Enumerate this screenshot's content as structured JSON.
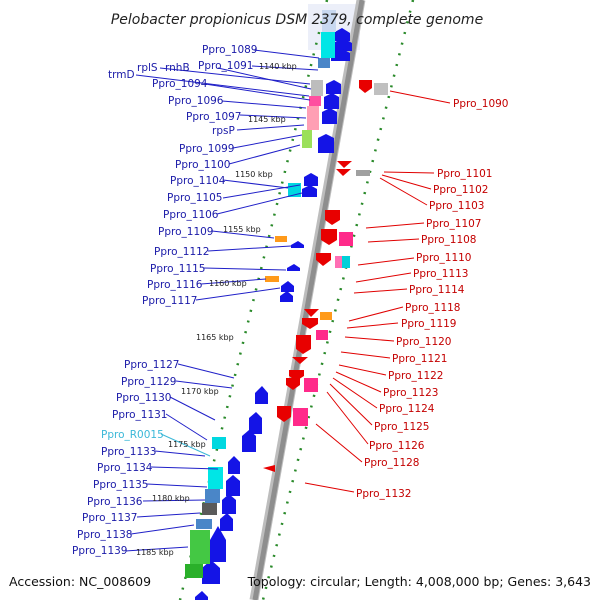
{
  "title": "Pelobacter propionicus DSM 2379, complete genome",
  "footer": {
    "accession": "Accession: NC_008609",
    "topology": "Topology: circular; Length: 4,008,000 bp; Genes: 3,643"
  },
  "ticks": [
    "1140 kbp",
    "1145 kbp",
    "1150 kbp",
    "1155 kbp",
    "1160 kbp",
    "1165 kbp",
    "1170 kbp",
    "1175 kbp",
    "1180 kbp",
    "1185 kbp"
  ],
  "left_labels": [
    "Ppro_1089",
    "Ppro_1091",
    "rplS",
    "rnhB",
    "trmD",
    "Ppro_1094",
    "Ppro_1096",
    "Ppro_1097",
    "rpsP",
    "Ppro_1099",
    "Ppro_1100",
    "Ppro_1104",
    "Ppro_1105",
    "Ppro_1106",
    "Ppro_1109",
    "Ppro_1112",
    "Ppro_1115",
    "Ppro_1116",
    "Ppro_1117",
    "Ppro_1127",
    "Ppro_1129",
    "Ppro_1130",
    "Ppro_1131",
    "Ppro_R0015",
    "Ppro_1133",
    "Ppro_1134",
    "Ppro_1135",
    "Ppro_1136",
    "Ppro_1137",
    "Ppro_1138",
    "Ppro_1139"
  ],
  "right_labels": [
    "Ppro_1090",
    "Ppro_1101",
    "Ppro_1102",
    "Ppro_1103",
    "Ppro_1107",
    "Ppro_1108",
    "Ppro_1110",
    "Ppro_1113",
    "Ppro_1114",
    "Ppro_1118",
    "Ppro_1119",
    "Ppro_1120",
    "Ppro_1121",
    "Ppro_1122",
    "Ppro_1123",
    "Ppro_1124",
    "Ppro_1125",
    "Ppro_1126",
    "Ppro_1128",
    "Ppro_1132"
  ],
  "colors": {
    "forward_label": "#1a1aa8",
    "reverse_label": "#c40000",
    "rna_label": "#3bb8d8",
    "backbone": "#9a9a9a",
    "tick": "#2a8a2a",
    "forward_gene": "#1010e0",
    "reverse_gene": "#e80000"
  }
}
